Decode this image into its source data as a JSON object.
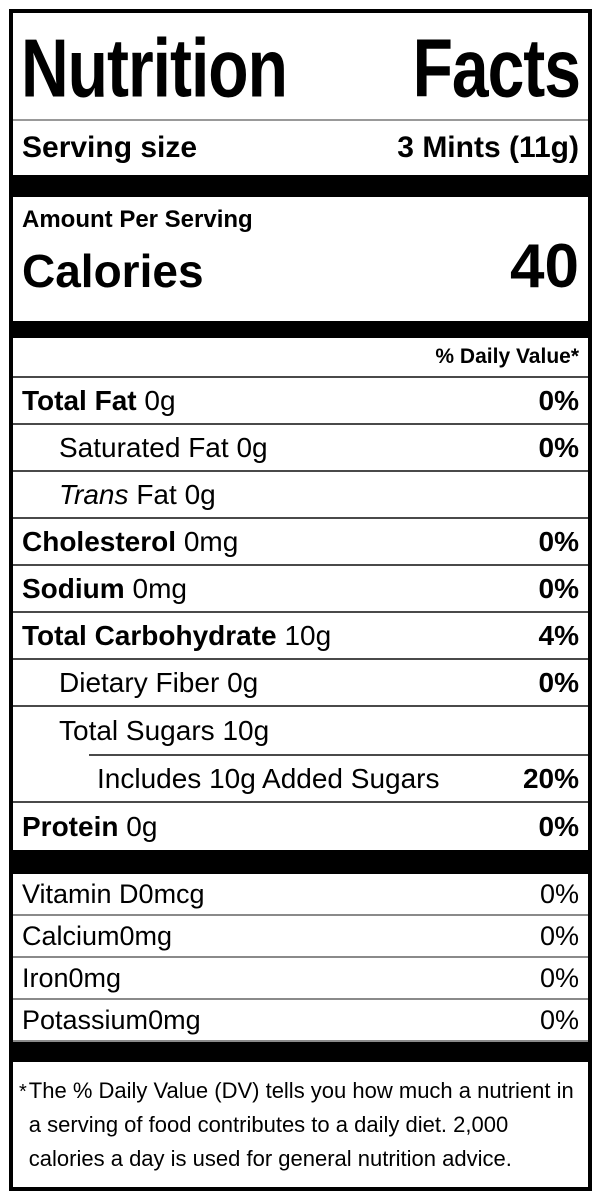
{
  "label": {
    "title": "Nutrition Facts",
    "serving": {
      "label": "Serving size",
      "value": "3 Mints (11g)"
    },
    "amount_per_serving": "Amount Per Serving",
    "calories": {
      "label": "Calories",
      "value": "40"
    },
    "daily_value_header": "% Daily Value*",
    "nutrients": [
      {
        "name": "Total Fat",
        "amount": "0g",
        "dv": "0%"
      },
      {
        "name": "Saturated Fat",
        "amount": "0g",
        "dv": "0%"
      },
      {
        "name": "Trans",
        "amount": "Fat 0g",
        "dv": ""
      },
      {
        "name": "Cholesterol",
        "amount": "0mg",
        "dv": "0%"
      },
      {
        "name": "Sodium",
        "amount": "0mg",
        "dv": "0%"
      },
      {
        "name": "Total Carbohydrate",
        "amount": "10g",
        "dv": "4%"
      },
      {
        "name": "Dietary Fiber",
        "amount": "0g",
        "dv": "0%"
      },
      {
        "name": "Total Sugars",
        "amount": "10g",
        "dv": ""
      },
      {
        "name": "Includes 10g Added Sugars",
        "amount": "",
        "dv": "20%"
      },
      {
        "name": "Protein",
        "amount": "0g",
        "dv": "0%"
      }
    ],
    "vitamins": [
      {
        "name": "Vitamin D",
        "amount": "0mcg",
        "dv": "0%"
      },
      {
        "name": "Calcium",
        "amount": "0mg",
        "dv": "0%"
      },
      {
        "name": "Iron",
        "amount": "0mg",
        "dv": "0%"
      },
      {
        "name": "Potassium",
        "amount": "0mg",
        "dv": "0%"
      }
    ],
    "footnote": {
      "symbol": "*",
      "text": "The % Daily Value (DV) tells you how much a nutrient in a serving of food contributes to a daily diet. 2,000 calories a day is used for general nutrition advice."
    },
    "colors": {
      "text": "#000000",
      "bars": "#000000",
      "separator": "#4a4a4a",
      "background": "#ffffff"
    }
  }
}
